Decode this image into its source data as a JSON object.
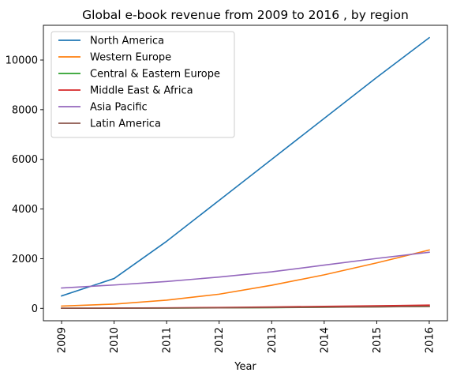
{
  "chart_data": {
    "type": "line",
    "title": "Global e-book revenue from 2009 to 2016 , by region",
    "xlabel": "Year",
    "ylabel": "",
    "x": [
      "2009",
      "2010",
      "2011",
      "2012",
      "2013",
      "2014",
      "2015",
      "2016"
    ],
    "ylim": [
      -500,
      11400
    ],
    "yticks": [
      0,
      2000,
      4000,
      6000,
      8000,
      10000
    ],
    "grid": false,
    "legend_position": "top-left",
    "series": [
      {
        "name": "North America",
        "color": "#1f77b4",
        "values": [
          500,
          1200,
          2700,
          4350,
          6000,
          7650,
          9300,
          10900
        ]
      },
      {
        "name": "Western Europe",
        "color": "#ff7f0e",
        "values": [
          90,
          170,
          330,
          570,
          930,
          1350,
          1830,
          2350
        ]
      },
      {
        "name": "Central & Eastern Europe",
        "color": "#2ca02c",
        "values": [
          2,
          5,
          10,
          18,
          28,
          42,
          58,
          75
        ]
      },
      {
        "name": "Middle East & Africa",
        "color": "#d62728",
        "values": [
          5,
          10,
          20,
          35,
          55,
          80,
          105,
          130
        ]
      },
      {
        "name": "Asia Pacific",
        "color": "#9467bd",
        "values": [
          820,
          940,
          1080,
          1260,
          1470,
          1740,
          2010,
          2260
        ]
      },
      {
        "name": "Latin America",
        "color": "#8c564b",
        "values": [
          3,
          6,
          12,
          20,
          32,
          45,
          60,
          78
        ]
      }
    ]
  }
}
